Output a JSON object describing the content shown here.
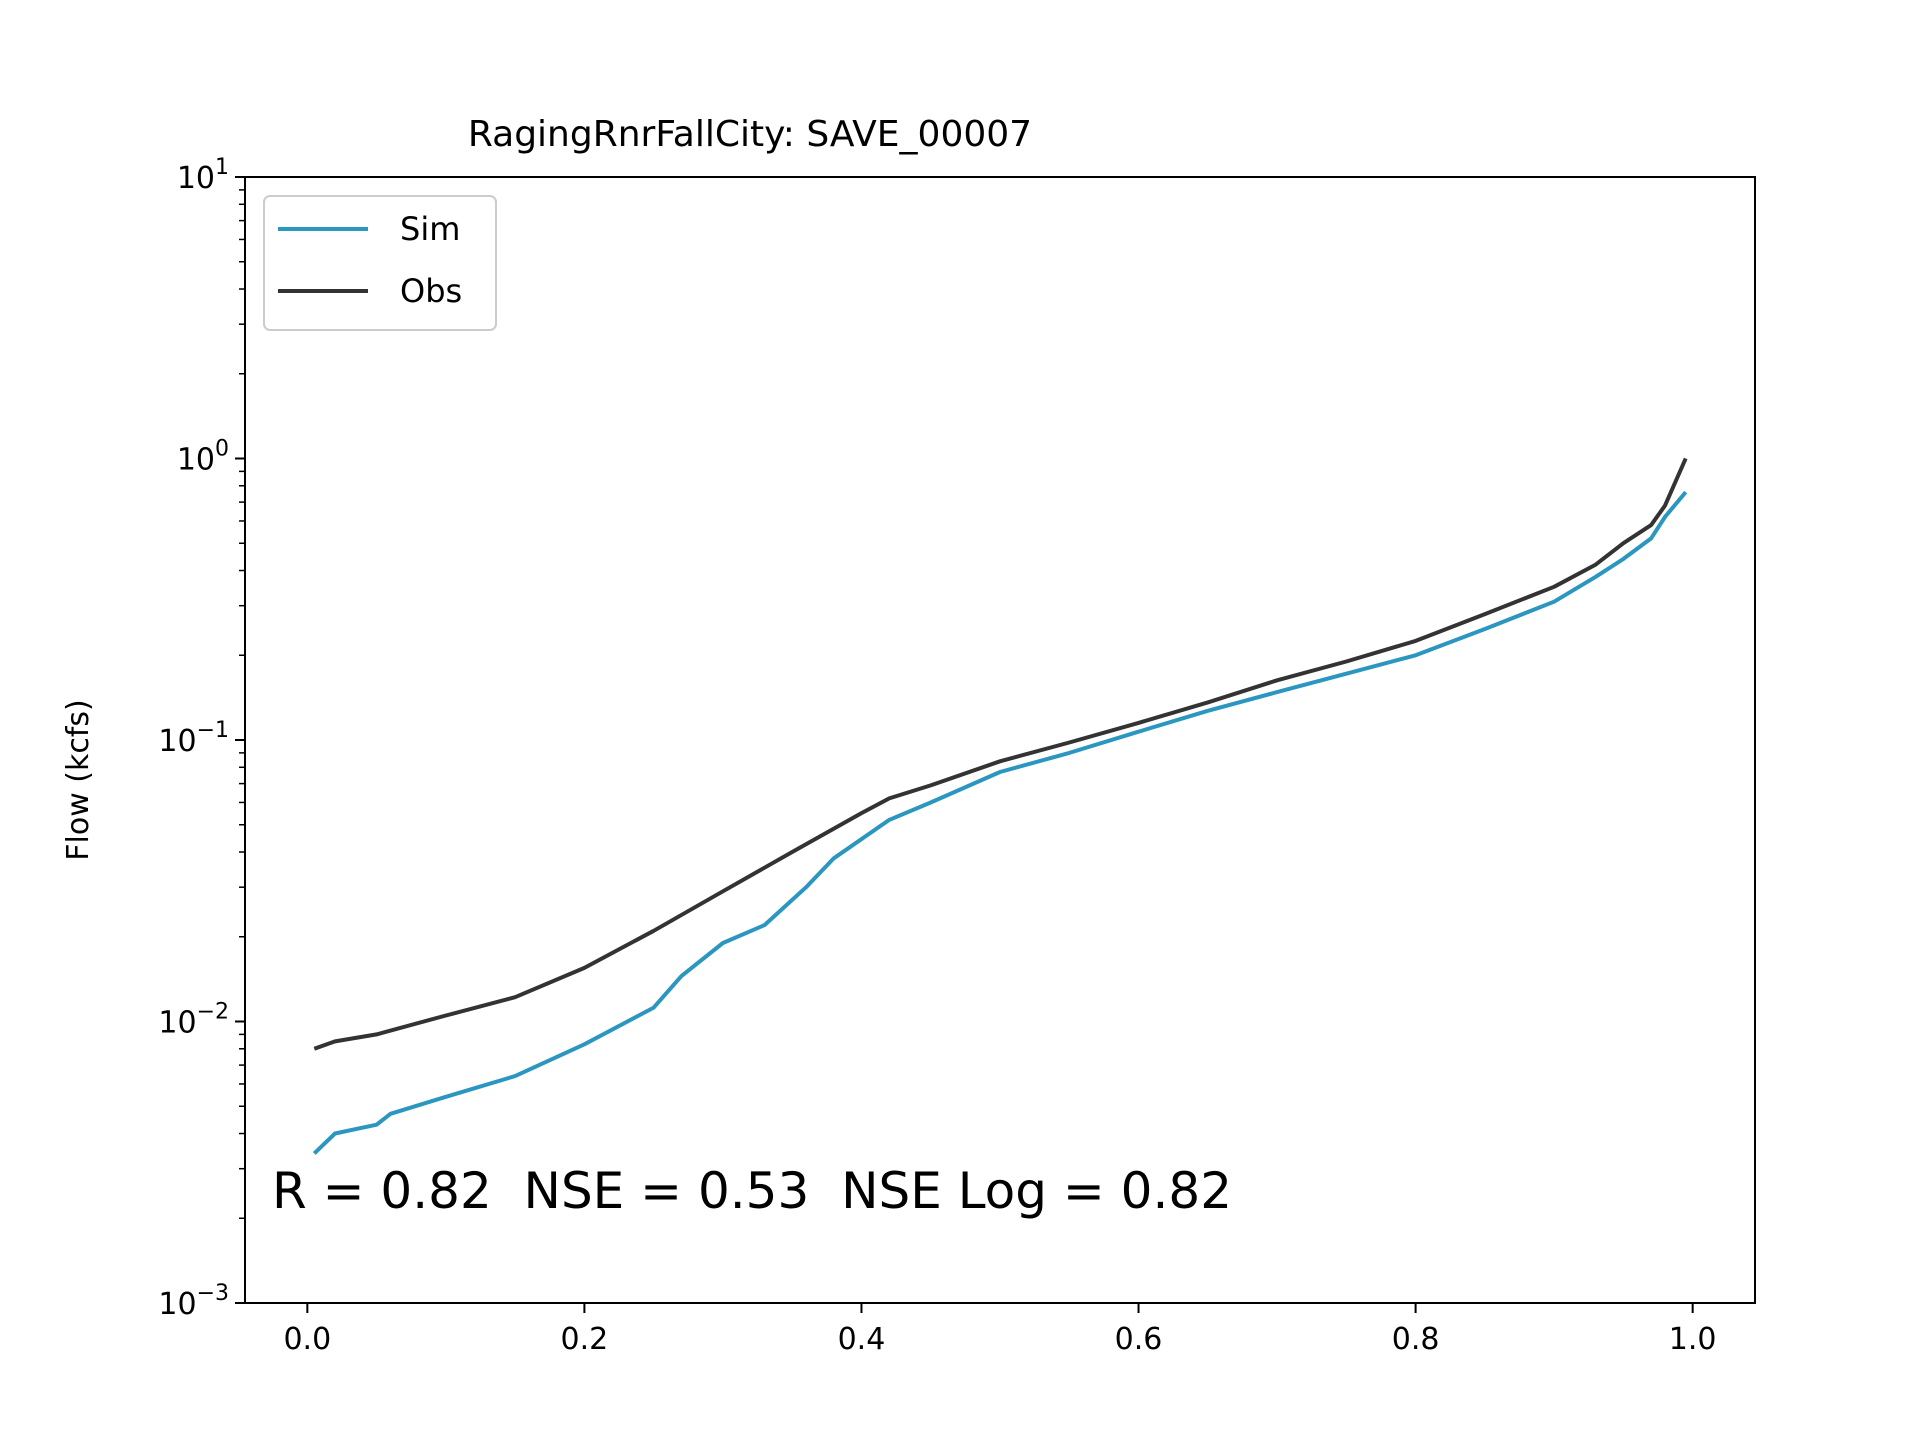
{
  "chart_data": {
    "type": "line",
    "title": "RagingRnrFallCity: SAVE_00007",
    "xlabel": "",
    "ylabel": "Flow (kcfs)",
    "xlim": [
      -0.045,
      1.045
    ],
    "ylim": [
      0.001,
      10
    ],
    "yscale": "log",
    "grid": false,
    "legend_placement": "top-left",
    "x_ticks": [
      "0.0",
      "0.2",
      "0.4",
      "0.6",
      "0.8",
      "1.0"
    ],
    "x_tick_values": [
      0,
      0.2,
      0.4,
      0.6,
      0.8,
      1.0
    ],
    "y_ticks": [
      {
        "base": "10",
        "exp": "−3",
        "value": 0.001
      },
      {
        "base": "10",
        "exp": "−2",
        "value": 0.01
      },
      {
        "base": "10",
        "exp": "−1",
        "value": 0.1
      },
      {
        "base": "10",
        "exp": "0",
        "value": 1
      },
      {
        "base": "10",
        "exp": "1",
        "value": 10
      }
    ],
    "annotation": "R = 0.82  NSE = 0.53  NSE Log = 0.82",
    "series": [
      {
        "name": "Sim",
        "color": "#2b96c0",
        "x": [
          0.005,
          0.02,
          0.05,
          0.06,
          0.1,
          0.15,
          0.2,
          0.25,
          0.27,
          0.3,
          0.33,
          0.36,
          0.38,
          0.42,
          0.45,
          0.5,
          0.55,
          0.6,
          0.65,
          0.7,
          0.75,
          0.8,
          0.85,
          0.9,
          0.93,
          0.95,
          0.97,
          0.98,
          0.995
        ],
        "y": [
          0.0034,
          0.004,
          0.0043,
          0.0047,
          0.0054,
          0.0064,
          0.0083,
          0.0112,
          0.0145,
          0.019,
          0.022,
          0.03,
          0.038,
          0.052,
          0.06,
          0.077,
          0.09,
          0.107,
          0.127,
          0.148,
          0.172,
          0.2,
          0.248,
          0.31,
          0.38,
          0.44,
          0.52,
          0.62,
          0.76
        ]
      },
      {
        "name": "Obs",
        "color": "#333333",
        "x": [
          0.005,
          0.02,
          0.05,
          0.1,
          0.15,
          0.2,
          0.25,
          0.3,
          0.35,
          0.4,
          0.42,
          0.45,
          0.5,
          0.55,
          0.6,
          0.65,
          0.7,
          0.75,
          0.8,
          0.85,
          0.9,
          0.93,
          0.95,
          0.97,
          0.98,
          0.995
        ],
        "y": [
          0.008,
          0.0085,
          0.009,
          0.0105,
          0.0122,
          0.0155,
          0.021,
          0.029,
          0.04,
          0.055,
          0.062,
          0.069,
          0.084,
          0.098,
          0.115,
          0.136,
          0.163,
          0.19,
          0.225,
          0.28,
          0.35,
          0.42,
          0.5,
          0.58,
          0.68,
          1.0
        ]
      }
    ]
  }
}
